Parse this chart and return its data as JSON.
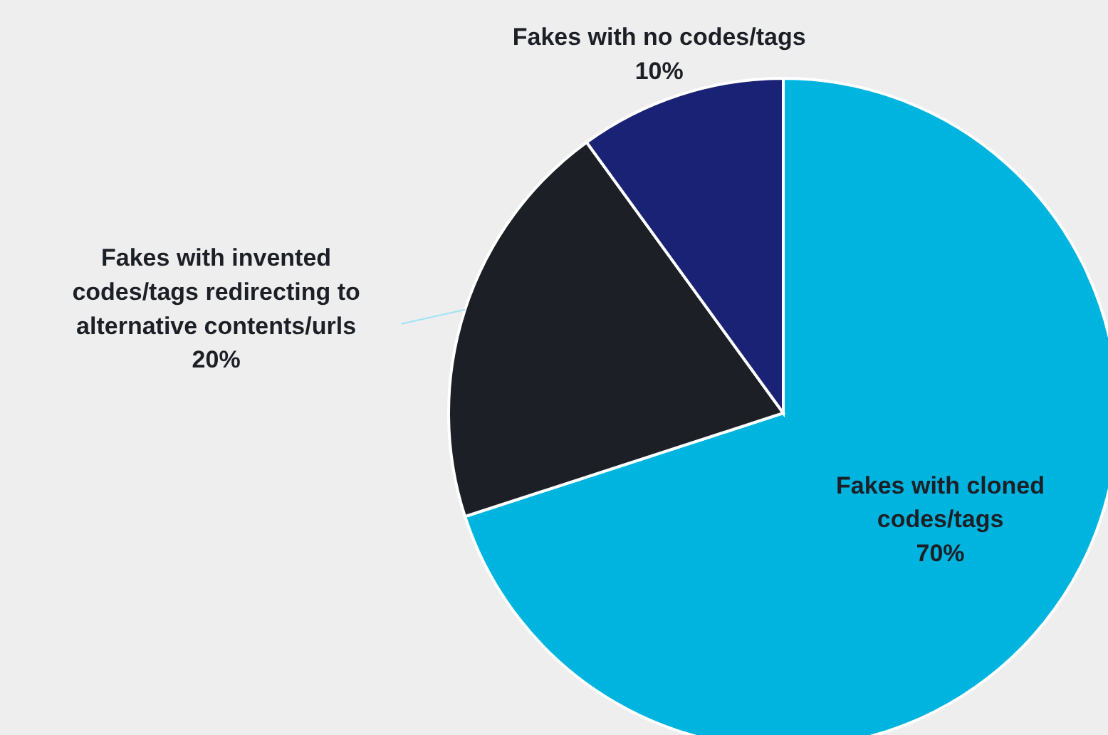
{
  "chart_data": {
    "type": "pie",
    "categories": [
      "Fakes with cloned codes/tags",
      "Fakes with invented codes/tags redirecting to alternative contents/urls",
      "Fakes with no codes/tags"
    ],
    "values": [
      70,
      20,
      10
    ],
    "colors": [
      "#00b4e0",
      "#1c2026",
      "#1a2275"
    ],
    "value_labels": [
      "70%",
      "20%",
      "10%"
    ]
  }
}
